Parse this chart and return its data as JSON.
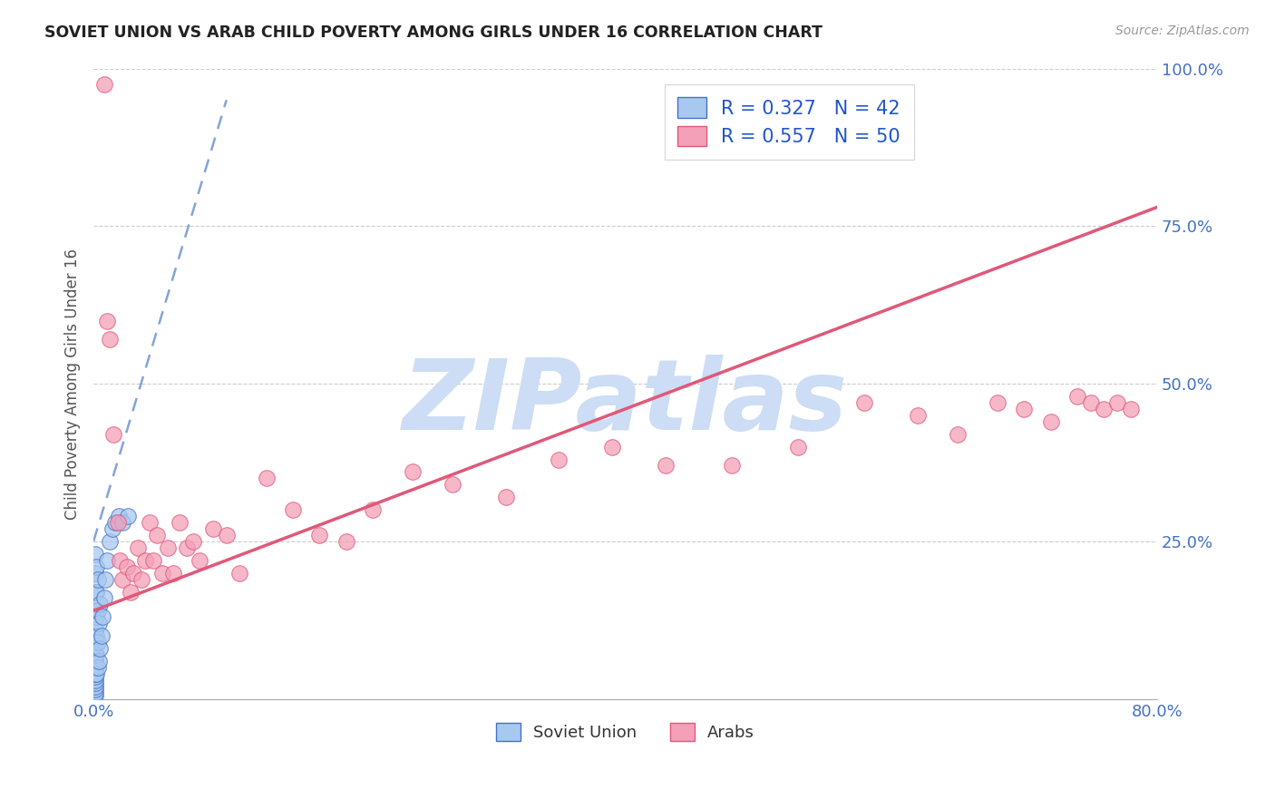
{
  "title": "SOVIET UNION VS ARAB CHILD POVERTY AMONG GIRLS UNDER 16 CORRELATION CHART",
  "source": "Source: ZipAtlas.com",
  "ylabel": "Child Poverty Among Girls Under 16",
  "xlim": [
    0.0,
    0.8
  ],
  "ylim": [
    0.0,
    1.0
  ],
  "xticks": [
    0.0,
    0.1,
    0.2,
    0.3,
    0.4,
    0.5,
    0.6,
    0.7,
    0.8
  ],
  "xticklabels": [
    "0.0%",
    "",
    "",
    "",
    "",
    "",
    "",
    "",
    "80.0%"
  ],
  "yticks": [
    0.0,
    0.25,
    0.5,
    0.75,
    1.0
  ],
  "yticklabels": [
    "",
    "25.0%",
    "50.0%",
    "75.0%",
    "100.0%"
  ],
  "soviet_R": 0.327,
  "soviet_N": 42,
  "arab_R": 0.557,
  "arab_N": 50,
  "soviet_color": "#a8c8f0",
  "arab_color": "#f4a0b8",
  "soviet_line_color": "#4472c4",
  "arab_line_color": "#e05878",
  "watermark": "ZIPatlas",
  "watermark_color": "#ccddf5",
  "soviet_points_x": [
    0.001,
    0.001,
    0.001,
    0.001,
    0.001,
    0.001,
    0.001,
    0.001,
    0.001,
    0.001,
    0.001,
    0.001,
    0.001,
    0.001,
    0.001,
    0.001,
    0.001,
    0.002,
    0.002,
    0.002,
    0.002,
    0.002,
    0.002,
    0.003,
    0.003,
    0.003,
    0.003,
    0.004,
    0.004,
    0.005,
    0.005,
    0.006,
    0.007,
    0.008,
    0.009,
    0.01,
    0.012,
    0.014,
    0.016,
    0.019,
    0.022,
    0.026
  ],
  "soviet_points_y": [
    0.005,
    0.01,
    0.015,
    0.02,
    0.025,
    0.03,
    0.035,
    0.04,
    0.05,
    0.06,
    0.07,
    0.09,
    0.11,
    0.14,
    0.17,
    0.2,
    0.23,
    0.04,
    0.07,
    0.1,
    0.13,
    0.17,
    0.21,
    0.05,
    0.09,
    0.14,
    0.19,
    0.06,
    0.12,
    0.08,
    0.15,
    0.1,
    0.13,
    0.16,
    0.19,
    0.22,
    0.25,
    0.27,
    0.28,
    0.29,
    0.28,
    0.29
  ],
  "arab_points_x": [
    0.008,
    0.01,
    0.012,
    0.015,
    0.018,
    0.02,
    0.022,
    0.025,
    0.028,
    0.03,
    0.033,
    0.036,
    0.039,
    0.042,
    0.045,
    0.048,
    0.052,
    0.056,
    0.06,
    0.065,
    0.07,
    0.075,
    0.08,
    0.09,
    0.1,
    0.11,
    0.13,
    0.15,
    0.17,
    0.19,
    0.21,
    0.24,
    0.27,
    0.31,
    0.35,
    0.39,
    0.43,
    0.48,
    0.53,
    0.58,
    0.62,
    0.65,
    0.68,
    0.7,
    0.72,
    0.74,
    0.75,
    0.76,
    0.77,
    0.78
  ],
  "arab_points_y": [
    0.975,
    0.6,
    0.57,
    0.42,
    0.28,
    0.22,
    0.19,
    0.21,
    0.17,
    0.2,
    0.24,
    0.19,
    0.22,
    0.28,
    0.22,
    0.26,
    0.2,
    0.24,
    0.2,
    0.28,
    0.24,
    0.25,
    0.22,
    0.27,
    0.26,
    0.2,
    0.35,
    0.3,
    0.26,
    0.25,
    0.3,
    0.36,
    0.34,
    0.32,
    0.38,
    0.4,
    0.37,
    0.37,
    0.4,
    0.47,
    0.45,
    0.42,
    0.47,
    0.46,
    0.44,
    0.48,
    0.47,
    0.46,
    0.47,
    0.46
  ],
  "soviet_line_x": [
    0.0,
    0.1
  ],
  "soviet_line_y": [
    0.25,
    0.95
  ],
  "arab_line_x": [
    0.0,
    0.8
  ],
  "arab_line_y": [
    0.14,
    0.78
  ]
}
